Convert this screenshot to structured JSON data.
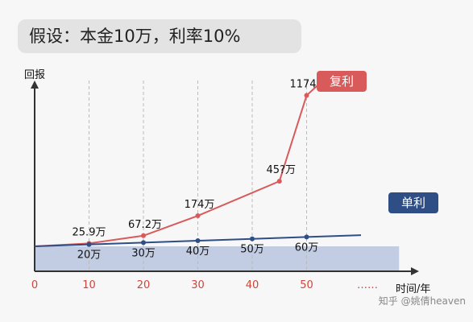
{
  "premise": "假设：本金10万，利率10%",
  "watermark": "知乎 @姚倩heaven",
  "chart_data": {
    "type": "line",
    "ylabel": "回报",
    "xlabel": "时间/年",
    "x_ticks": [
      "0",
      "10",
      "20",
      "30",
      "40",
      "50"
    ],
    "x_ellipsis": "……",
    "xlim": [
      0,
      65
    ],
    "ylim": [
      10,
      1350
    ],
    "series": [
      {
        "name": "复利",
        "color": "#d85a5a",
        "x": [
          0,
          10,
          20,
          30,
          45,
          50,
          53
        ],
        "y": [
          10,
          25.9,
          67.2,
          174,
          450,
          1174,
          1300
        ],
        "labels": [
          {
            "text": "25.9万",
            "x": 10,
            "y": 25.9
          },
          {
            "text": "67.2万",
            "x": 20,
            "y": 67.2
          },
          {
            "text": "174万",
            "x": 30,
            "y": 174
          },
          {
            "text": "45?万",
            "x": 45,
            "y": 450
          },
          {
            "text": "1174万",
            "x": 50,
            "y": 1174
          }
        ]
      },
      {
        "name": "单利",
        "color": "#2f4e86",
        "x": [
          0,
          10,
          20,
          30,
          40,
          50,
          60
        ],
        "y": [
          10,
          20,
          30,
          40,
          50,
          60,
          70
        ],
        "labels": [
          {
            "text": "20万",
            "x": 10,
            "y": 20
          },
          {
            "text": "30万",
            "x": 20,
            "y": 30
          },
          {
            "text": "40万",
            "x": 30,
            "y": 40
          },
          {
            "text": "50万",
            "x": 40,
            "y": 50
          },
          {
            "text": "60万",
            "x": 50,
            "y": 60
          }
        ]
      }
    ],
    "principal": 10
  }
}
